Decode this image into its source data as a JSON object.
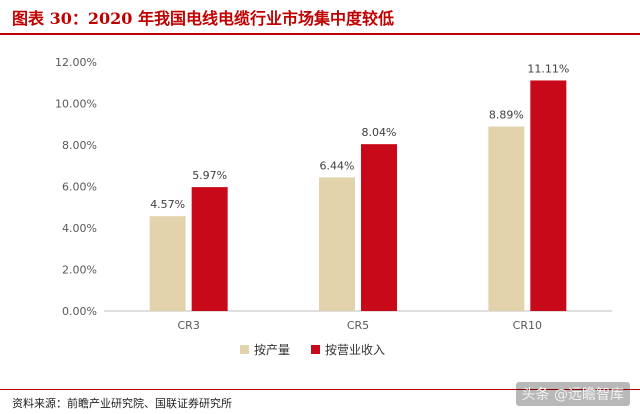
{
  "title": "图表 30：2020 年我国电线电缆行业市场集中度较低",
  "source": "资料来源：前瞻产业研究院、国联证券研究所",
  "watermark": "头条 @远瞻智库",
  "chart_data": {
    "type": "bar",
    "categories": [
      "CR3",
      "CR5",
      "CR10"
    ],
    "series": [
      {
        "name": "按产量",
        "values": [
          4.57,
          6.44,
          8.89
        ],
        "labels": [
          "4.57%",
          "6.44%",
          "8.89%"
        ],
        "color": "#e3d3ac"
      },
      {
        "name": "按营业收入",
        "values": [
          5.97,
          8.04,
          11.11
        ],
        "labels": [
          "5.97%",
          "8.04%",
          "11.11%"
        ],
        "color": "#c8091a"
      }
    ],
    "ylim": [
      0,
      12
    ],
    "yticks": [
      0,
      2,
      4,
      6,
      8,
      10,
      12
    ],
    "ytick_labels": [
      "0.00%",
      "2.00%",
      "4.00%",
      "6.00%",
      "8.00%",
      "10.00%",
      "12.00%"
    ],
    "grid": false,
    "legend_position": "bottom-center"
  }
}
